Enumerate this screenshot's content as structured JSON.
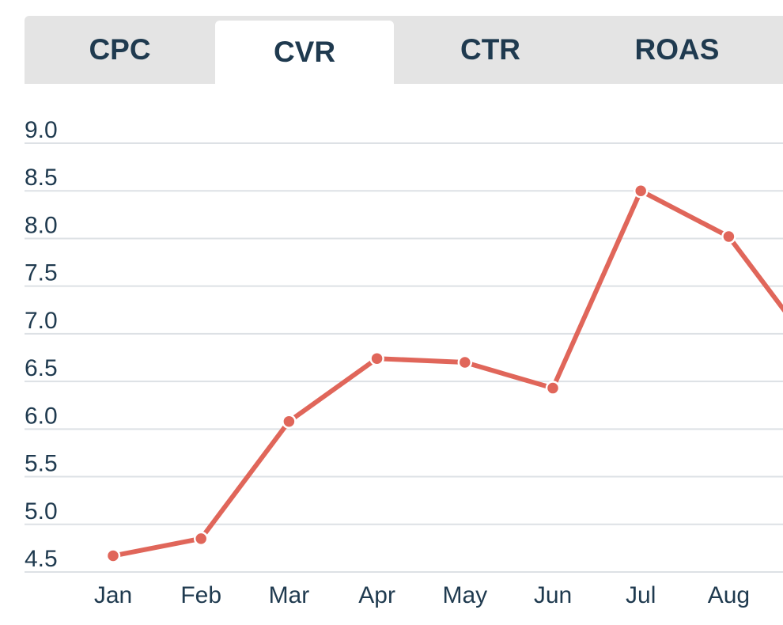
{
  "tabs": [
    {
      "label": "CPC",
      "active": false
    },
    {
      "label": "CVR",
      "active": true
    },
    {
      "label": "CTR",
      "active": false
    },
    {
      "label": "ROAS",
      "active": false
    }
  ],
  "chart_data": {
    "type": "line",
    "categories": [
      "Jan",
      "Feb",
      "Mar",
      "Apr",
      "May",
      "Jun",
      "Jul",
      "Aug"
    ],
    "values": [
      4.67,
      4.85,
      6.08,
      6.74,
      6.7,
      6.43,
      8.5,
      8.02
    ],
    "ylim": [
      4.5,
      9.0
    ],
    "yticks": [
      "9.0",
      "8.5",
      "8.0",
      "7.5",
      "7.0",
      "6.5",
      "6.0",
      "5.5",
      "5.0",
      "4.5"
    ],
    "grid": true,
    "line_color": "#e0665a",
    "grid_color": "#dde1e5",
    "text_color": "#1f3a4f"
  }
}
